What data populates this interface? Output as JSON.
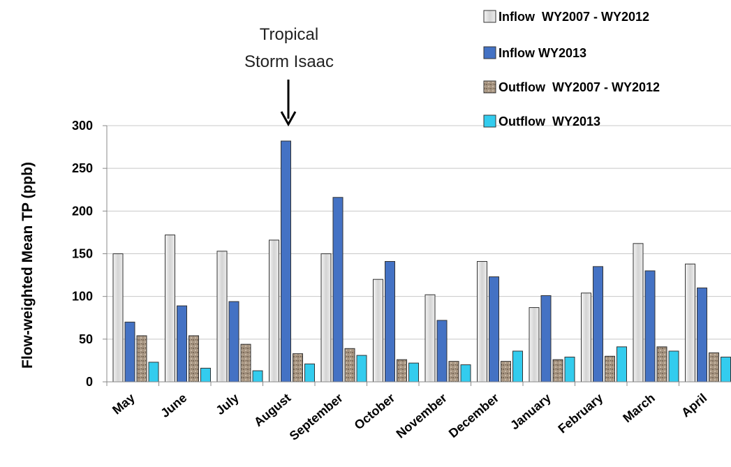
{
  "chart_data": {
    "type": "bar",
    "categories": [
      "May",
      "June",
      "July",
      "August",
      "September",
      "October",
      "November",
      "December",
      "January",
      "February",
      "March",
      "April"
    ],
    "series": [
      {
        "name": "Inflow  WY2007 - WY2012",
        "color": "#e3e3e3",
        "values": [
          150,
          172,
          153,
          166,
          150,
          120,
          102,
          141,
          87,
          104,
          162,
          138
        ]
      },
      {
        "name": "Inflow WY2013",
        "color": "#4472c4",
        "values": [
          70,
          89,
          94,
          282,
          216,
          141,
          72,
          123,
          101,
          135,
          130,
          110
        ]
      },
      {
        "name": "Outflow  WY2007 - WY2012",
        "color": "#9c8a78",
        "values": [
          54,
          54,
          44,
          33,
          39,
          26,
          24,
          24,
          26,
          30,
          41,
          34
        ]
      },
      {
        "name": "Outflow  WY2013",
        "color": "#33ccee",
        "values": [
          23,
          16,
          13,
          21,
          31,
          22,
          20,
          36,
          29,
          41,
          36,
          29
        ]
      }
    ],
    "ylabel": "Flow-weighted Mean TP (ppb)",
    "xlabel": "",
    "ylim": [
      0,
      300
    ],
    "yticks": [
      0,
      50,
      100,
      150,
      200,
      250,
      300
    ],
    "grid": true,
    "legend_position": "top-right",
    "annotation": {
      "lines": [
        "Tropical",
        "Storm Isaac"
      ],
      "category": "August"
    }
  }
}
